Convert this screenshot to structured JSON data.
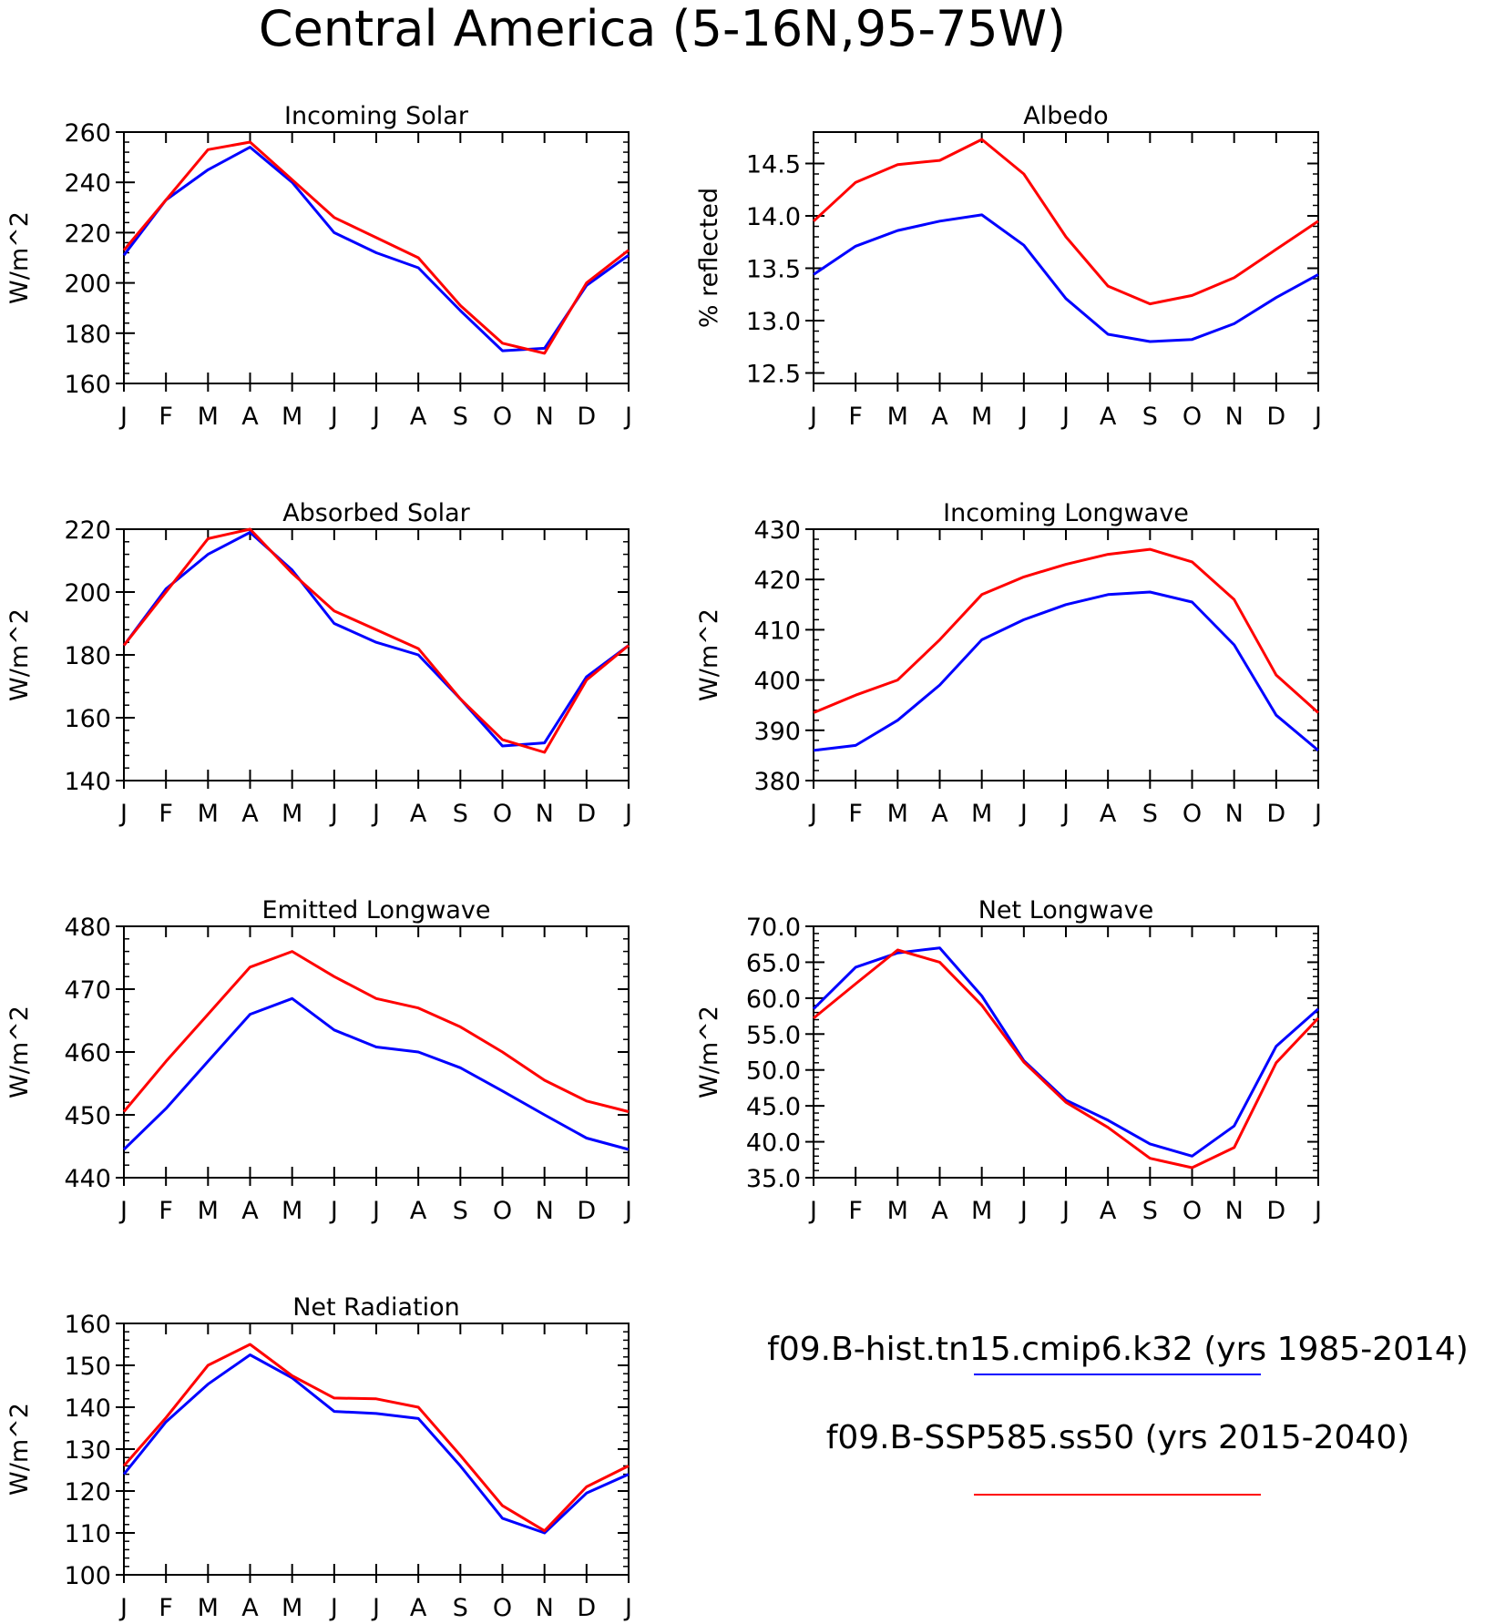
{
  "figure": {
    "title": "Central America (5-16N,95-75W)",
    "legend": [
      {
        "label": "f09.B-hist.tn15.cmip6.k32 (yrs 1985-2014)",
        "color": "#0000ff"
      },
      {
        "label": "f09.B-SSP585.ss50 (yrs 2015-2040)",
        "color": "#ff0000"
      }
    ]
  },
  "chart_data": [
    {
      "type": "line",
      "title": "Incoming Solar",
      "ylabel": "W/m^2",
      "x": [
        "J",
        "F",
        "M",
        "A",
        "M",
        "J",
        "J",
        "A",
        "S",
        "O",
        "N",
        "D",
        "J"
      ],
      "ylim": [
        160,
        260
      ],
      "yticks": [
        160,
        180,
        200,
        220,
        240,
        260
      ],
      "ytick_labels": [
        "160",
        "180",
        "200",
        "220",
        "240",
        "260"
      ],
      "series": [
        {
          "color": "#0000ff",
          "values": [
            211,
            233,
            245,
            254,
            240,
            220,
            212,
            206,
            189,
            173,
            174,
            199,
            211
          ]
        },
        {
          "color": "#ff0000",
          "values": [
            213,
            233,
            253,
            256,
            241,
            226,
            218,
            210,
            191,
            176,
            172,
            200,
            213
          ]
        }
      ]
    },
    {
      "type": "line",
      "title": "Albedo",
      "ylabel": "% reflected",
      "x": [
        "J",
        "F",
        "M",
        "A",
        "M",
        "J",
        "J",
        "A",
        "S",
        "O",
        "N",
        "D",
        "J"
      ],
      "ylim": [
        12.4,
        14.8
      ],
      "yticks": [
        12.5,
        13.0,
        13.5,
        14.0,
        14.5
      ],
      "ytick_labels": [
        "12.5",
        "13.0",
        "13.5",
        "14.0",
        "14.5"
      ],
      "series": [
        {
          "color": "#0000ff",
          "values": [
            13.44,
            13.71,
            13.86,
            13.95,
            14.01,
            13.72,
            13.21,
            12.87,
            12.8,
            12.82,
            12.97,
            13.22,
            13.44
          ]
        },
        {
          "color": "#ff0000",
          "values": [
            13.95,
            14.32,
            14.49,
            14.53,
            14.73,
            14.4,
            13.8,
            13.33,
            13.16,
            13.24,
            13.41,
            13.68,
            13.95
          ]
        }
      ]
    },
    {
      "type": "line",
      "title": "Absorbed Solar",
      "ylabel": "W/m^2",
      "x": [
        "J",
        "F",
        "M",
        "A",
        "M",
        "J",
        "J",
        "A",
        "S",
        "O",
        "N",
        "D",
        "J"
      ],
      "ylim": [
        140,
        220
      ],
      "yticks": [
        140,
        160,
        180,
        200,
        220
      ],
      "ytick_labels": [
        "140",
        "160",
        "180",
        "200",
        "220"
      ],
      "series": [
        {
          "color": "#0000ff",
          "values": [
            183,
            201,
            212,
            219,
            207,
            190,
            184,
            180,
            166,
            151,
            152,
            173,
            183
          ]
        },
        {
          "color": "#ff0000",
          "values": [
            183,
            200,
            217,
            220,
            206,
            194,
            188,
            182,
            166,
            153,
            149,
            172,
            183
          ]
        }
      ]
    },
    {
      "type": "line",
      "title": "Incoming Longwave",
      "ylabel": "W/m^2",
      "x": [
        "J",
        "F",
        "M",
        "A",
        "M",
        "J",
        "J",
        "A",
        "S",
        "O",
        "N",
        "D",
        "J"
      ],
      "ylim": [
        380,
        430
      ],
      "yticks": [
        380,
        390,
        400,
        410,
        420,
        430
      ],
      "ytick_labels": [
        "380",
        "390",
        "400",
        "410",
        "420",
        "430"
      ],
      "series": [
        {
          "color": "#0000ff",
          "values": [
            386,
            387,
            392,
            399,
            408,
            412,
            415,
            417,
            417.5,
            415.5,
            407,
            393,
            386
          ]
        },
        {
          "color": "#ff0000",
          "values": [
            393.5,
            397,
            400,
            408,
            417,
            420.5,
            423,
            425,
            426,
            423.5,
            416,
            401,
            393.5
          ]
        }
      ]
    },
    {
      "type": "line",
      "title": "Emitted Longwave",
      "ylabel": "W/m^2",
      "x": [
        "J",
        "F",
        "M",
        "A",
        "M",
        "J",
        "J",
        "A",
        "S",
        "O",
        "N",
        "D",
        "J"
      ],
      "ylim": [
        440,
        480
      ],
      "yticks": [
        440,
        450,
        460,
        470,
        480
      ],
      "ytick_labels": [
        "440",
        "450",
        "460",
        "470",
        "480"
      ],
      "series": [
        {
          "color": "#0000ff",
          "values": [
            444.5,
            451,
            458.5,
            466,
            468.5,
            463.5,
            460.8,
            460,
            457.5,
            453.8,
            450,
            446.3,
            444.5
          ]
        },
        {
          "color": "#ff0000",
          "values": [
            450.5,
            458.5,
            466,
            473.5,
            476,
            472,
            468.5,
            467,
            464,
            460,
            455.5,
            452.2,
            450.5
          ]
        }
      ]
    },
    {
      "type": "line",
      "title": "Net Longwave",
      "ylabel": "W/m^2",
      "x": [
        "J",
        "F",
        "M",
        "A",
        "M",
        "J",
        "J",
        "A",
        "S",
        "O",
        "N",
        "D",
        "J"
      ],
      "ylim": [
        35,
        70
      ],
      "yticks": [
        35,
        40,
        45,
        50,
        55,
        60,
        65,
        70
      ],
      "ytick_labels": [
        "35.0",
        "40.0",
        "45.0",
        "50.0",
        "55.0",
        "60.0",
        "65.0",
        "70.0"
      ],
      "series": [
        {
          "color": "#0000ff",
          "values": [
            58.5,
            64.3,
            66.3,
            67,
            60.3,
            51.3,
            45.8,
            43,
            39.7,
            38,
            42.2,
            53.3,
            58.5
          ]
        },
        {
          "color": "#ff0000",
          "values": [
            57.2,
            62,
            66.7,
            65,
            59,
            51.1,
            45.5,
            42,
            37.7,
            36.4,
            39.2,
            51,
            57.2
          ]
        }
      ]
    },
    {
      "type": "line",
      "title": "Net Radiation",
      "ylabel": "W/m^2",
      "x": [
        "J",
        "F",
        "M",
        "A",
        "M",
        "J",
        "J",
        "A",
        "S",
        "O",
        "N",
        "D",
        "J"
      ],
      "ylim": [
        100,
        160
      ],
      "yticks": [
        100,
        110,
        120,
        130,
        140,
        150,
        160
      ],
      "ytick_labels": [
        "100",
        "110",
        "120",
        "130",
        "140",
        "150",
        "160"
      ],
      "series": [
        {
          "color": "#0000ff",
          "values": [
            124,
            136.5,
            145.5,
            152.5,
            147,
            139,
            138.5,
            137.3,
            126,
            113.5,
            110,
            119.5,
            124
          ]
        },
        {
          "color": "#ff0000",
          "values": [
            126,
            137.5,
            150,
            155,
            147.5,
            142.2,
            142,
            140,
            128.5,
            116.5,
            110.5,
            121,
            126
          ]
        }
      ]
    }
  ]
}
